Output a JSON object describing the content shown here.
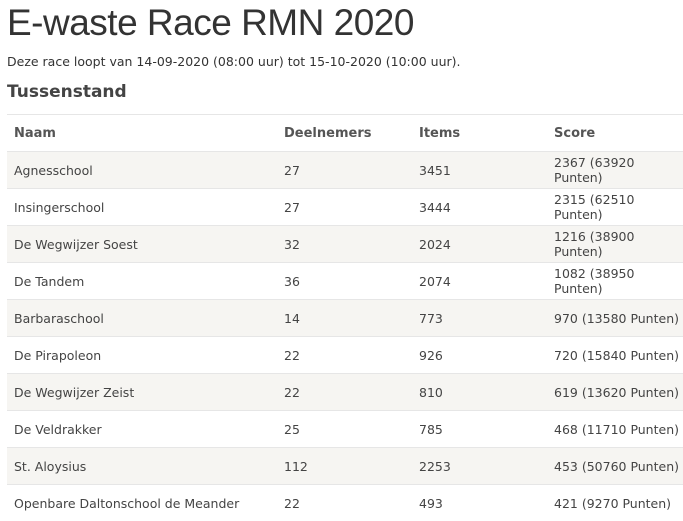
{
  "header": {
    "title": "E-waste Race RMN 2020",
    "subtitle": "Deze race loopt van 14-09-2020 (08:00 uur) tot 15-10-2020 (10:00 uur)."
  },
  "section": {
    "title": "Tussenstand"
  },
  "table": {
    "columns": [
      "Naam",
      "Deelnemers",
      "Items",
      "Score"
    ],
    "rows": [
      [
        "Agnesschool",
        "27",
        "3451",
        "2367 (63920 Punten)"
      ],
      [
        "Insingerschool",
        "27",
        "3444",
        "2315 (62510 Punten)"
      ],
      [
        "De Wegwijzer Soest",
        "32",
        "2024",
        "1216 (38900 Punten)"
      ],
      [
        "De Tandem",
        "36",
        "2074",
        "1082 (38950 Punten)"
      ],
      [
        "Barbaraschool",
        "14",
        "773",
        "970 (13580 Punten)"
      ],
      [
        "De Pirapoleon",
        "22",
        "926",
        "720 (15840 Punten)"
      ],
      [
        "De Wegwijzer Zeist",
        "22",
        "810",
        "619 (13620 Punten)"
      ],
      [
        "De Veldrakker",
        "25",
        "785",
        "468 (11710 Punten)"
      ],
      [
        "St. Aloysius",
        "112",
        "2253",
        "453 (50760 Punten)"
      ],
      [
        "Openbare Daltonschool de Meander",
        "22",
        "493",
        "421 (9270 Punten)"
      ]
    ]
  }
}
